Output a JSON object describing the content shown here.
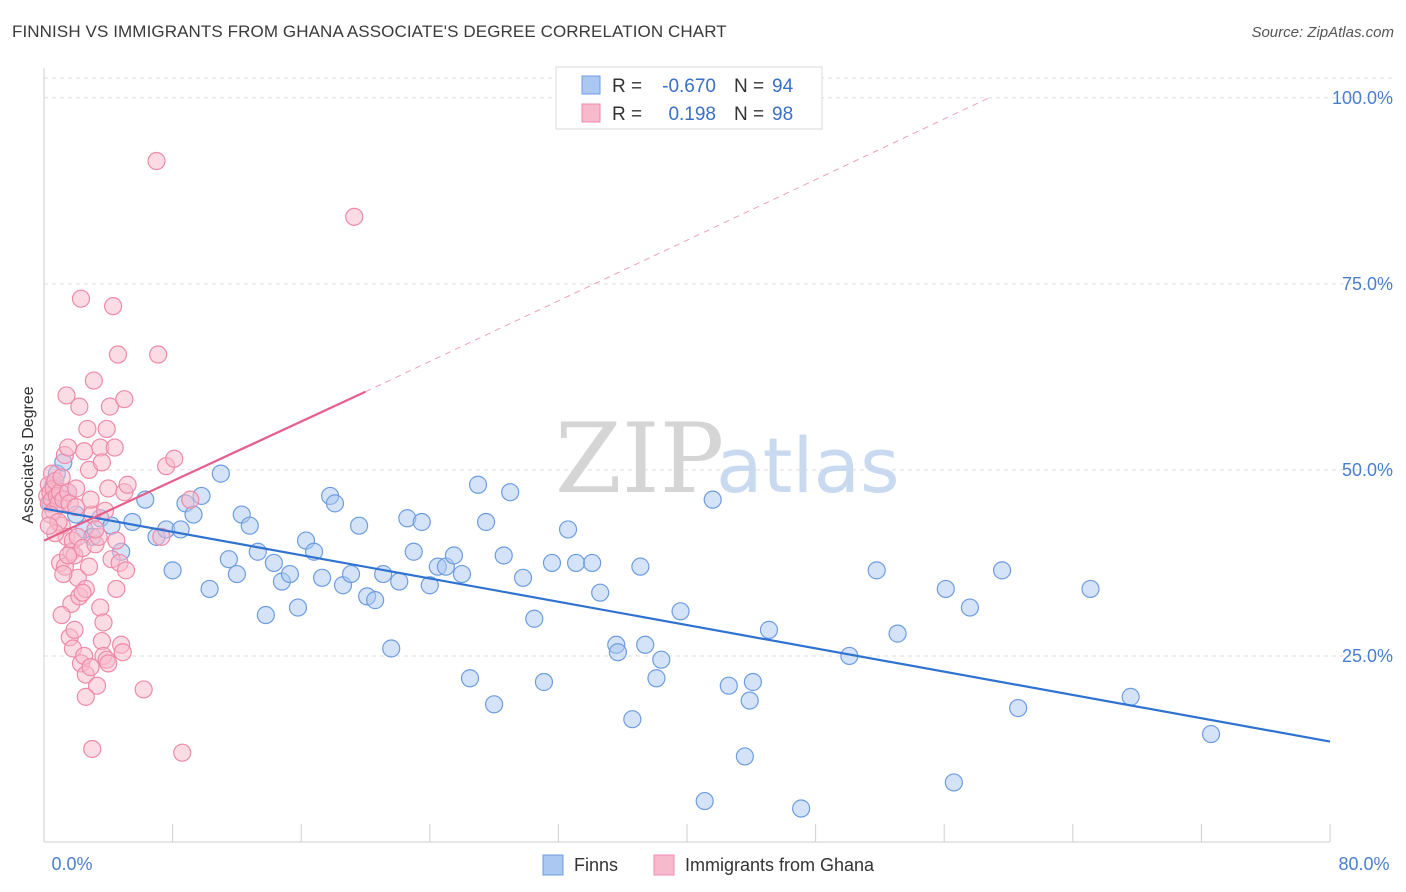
{
  "title": "FINNISH VS IMMIGRANTS FROM GHANA ASSOCIATE'S DEGREE CORRELATION CHART",
  "source": "Source: ZipAtlas.com",
  "watermark": {
    "zip": "ZIP",
    "atlas": "atlas"
  },
  "colors": {
    "finns_fill": "#aac8f2",
    "finns_stroke": "#6d9de0",
    "finns_line": "#2f72d0",
    "ghana_fill": "#f7b9cc",
    "ghana_stroke": "#ee8aa8",
    "ghana_line": "#e55f8a",
    "grid": "#dedede",
    "tick_text": "#4a7fd0"
  },
  "legend": {
    "rows": [
      {
        "r_label": "R =",
        "r_value": "-0.670",
        "n_label": "N =",
        "n_value": "94"
      },
      {
        "r_label": "R =",
        "r_value": "0.198",
        "n_label": "N =",
        "n_value": "98"
      }
    ]
  },
  "chart_data": {
    "type": "scatter",
    "xlabel": "",
    "ylabel": "Associate's Degree",
    "xlim": [
      0,
      80
    ],
    "ylim": [
      0,
      104
    ],
    "x_tick_labels": [
      "0.0%",
      "80.0%"
    ],
    "y_ticks": [
      25,
      50,
      75,
      100
    ],
    "y_tick_labels": [
      "25.0%",
      "50.0%",
      "75.0%",
      "100.0%"
    ],
    "grid": true,
    "legend_position": "top-center",
    "series": [
      {
        "name": "Finns",
        "r": -0.67,
        "n": 94,
        "trend": {
          "x": [
            0,
            80
          ],
          "y": [
            44.8,
            13.5
          ]
        },
        "points": [
          [
            0.4,
            45.5
          ],
          [
            0.6,
            48.0
          ],
          [
            0.8,
            49.5
          ],
          [
            1.2,
            51.0
          ],
          [
            1.5,
            47.0
          ],
          [
            2.0,
            44.0
          ],
          [
            2.5,
            42.0
          ],
          [
            3.0,
            41.0
          ],
          [
            3.5,
            43.5
          ],
          [
            4.2,
            42.5
          ],
          [
            4.8,
            39.0
          ],
          [
            5.5,
            43.0
          ],
          [
            6.3,
            46.0
          ],
          [
            7.0,
            41.0
          ],
          [
            7.6,
            42.0
          ],
          [
            8.0,
            36.5
          ],
          [
            8.5,
            42.0
          ],
          [
            8.8,
            45.5
          ],
          [
            9.3,
            44.0
          ],
          [
            9.8,
            46.5
          ],
          [
            10.3,
            34.0
          ],
          [
            11.0,
            49.5
          ],
          [
            11.5,
            38.0
          ],
          [
            12.0,
            36.0
          ],
          [
            12.3,
            44.0
          ],
          [
            12.8,
            42.5
          ],
          [
            13.3,
            39.0
          ],
          [
            13.8,
            30.5
          ],
          [
            14.3,
            37.5
          ],
          [
            14.8,
            35.0
          ],
          [
            15.3,
            36.0
          ],
          [
            15.8,
            31.5
          ],
          [
            16.3,
            40.5
          ],
          [
            16.8,
            39.0
          ],
          [
            17.3,
            35.5
          ],
          [
            17.8,
            46.5
          ],
          [
            18.1,
            45.5
          ],
          [
            18.6,
            34.5
          ],
          [
            19.1,
            36.0
          ],
          [
            19.6,
            42.5
          ],
          [
            20.1,
            33.0
          ],
          [
            20.6,
            32.5
          ],
          [
            21.1,
            36.0
          ],
          [
            21.6,
            26.0
          ],
          [
            22.1,
            35.0
          ],
          [
            22.6,
            43.5
          ],
          [
            23.0,
            39.0
          ],
          [
            23.5,
            43.0
          ],
          [
            24.0,
            34.5
          ],
          [
            24.5,
            37.0
          ],
          [
            25.0,
            37.0
          ],
          [
            25.5,
            38.5
          ],
          [
            26.0,
            36.0
          ],
          [
            26.5,
            22.0
          ],
          [
            27.0,
            48.0
          ],
          [
            27.5,
            43.0
          ],
          [
            28.0,
            18.5
          ],
          [
            28.6,
            38.5
          ],
          [
            29.0,
            47.0
          ],
          [
            29.8,
            35.5
          ],
          [
            30.5,
            30.0
          ],
          [
            31.1,
            21.5
          ],
          [
            31.6,
            37.5
          ],
          [
            32.6,
            42.0
          ],
          [
            33.1,
            37.5
          ],
          [
            34.1,
            37.5
          ],
          [
            34.6,
            33.5
          ],
          [
            35.6,
            26.5
          ],
          [
            35.7,
            25.5
          ],
          [
            36.6,
            16.5
          ],
          [
            37.1,
            37.0
          ],
          [
            37.4,
            26.5
          ],
          [
            38.1,
            22.0
          ],
          [
            38.4,
            24.5
          ],
          [
            39.6,
            31.0
          ],
          [
            41.1,
            5.5
          ],
          [
            41.6,
            46.0
          ],
          [
            42.6,
            21.0
          ],
          [
            43.6,
            11.5
          ],
          [
            43.9,
            19.0
          ],
          [
            44.1,
            21.5
          ],
          [
            45.1,
            28.5
          ],
          [
            50.1,
            25.0
          ],
          [
            51.8,
            36.5
          ],
          [
            53.1,
            28.0
          ],
          [
            56.1,
            34.0
          ],
          [
            56.6,
            8.0
          ],
          [
            57.6,
            31.5
          ],
          [
            59.6,
            36.5
          ],
          [
            60.6,
            18.0
          ],
          [
            65.1,
            34.0
          ],
          [
            67.6,
            19.5
          ],
          [
            72.6,
            14.5
          ],
          [
            47.1,
            4.5
          ]
        ]
      },
      {
        "name": "Immigrants from Ghana",
        "r": 0.198,
        "n": 98,
        "trend": {
          "x": [
            0,
            20
          ],
          "y": [
            40.5,
            60.5
          ]
        },
        "trend_dashed": {
          "x": [
            20,
            58.8
          ],
          "y": [
            60.5,
            100
          ]
        },
        "points": [
          [
            0.2,
            46.5
          ],
          [
            0.3,
            48.0
          ],
          [
            0.3,
            45.5
          ],
          [
            0.4,
            47.0
          ],
          [
            0.5,
            49.5
          ],
          [
            0.5,
            46.0
          ],
          [
            0.6,
            47.5
          ],
          [
            0.6,
            44.5
          ],
          [
            0.7,
            48.5
          ],
          [
            0.8,
            46.5
          ],
          [
            0.9,
            45.5
          ],
          [
            1.0,
            47.0
          ],
          [
            1.0,
            37.5
          ],
          [
            1.1,
            42.5
          ],
          [
            1.1,
            49.0
          ],
          [
            1.2,
            46.0
          ],
          [
            1.3,
            52.0
          ],
          [
            1.3,
            37.0
          ],
          [
            1.4,
            41.0
          ],
          [
            1.4,
            60.0
          ],
          [
            1.5,
            53.0
          ],
          [
            1.5,
            47.0
          ],
          [
            1.6,
            45.5
          ],
          [
            1.6,
            27.5
          ],
          [
            1.7,
            39.0
          ],
          [
            1.7,
            32.0
          ],
          [
            1.8,
            40.5
          ],
          [
            1.8,
            26.0
          ],
          [
            1.9,
            38.5
          ],
          [
            2.0,
            47.5
          ],
          [
            2.0,
            45.0
          ],
          [
            2.1,
            41.0
          ],
          [
            2.1,
            35.5
          ],
          [
            2.2,
            58.5
          ],
          [
            2.2,
            33.0
          ],
          [
            2.3,
            73.0
          ],
          [
            2.3,
            24.0
          ],
          [
            2.4,
            39.5
          ],
          [
            2.5,
            52.5
          ],
          [
            2.5,
            25.0
          ],
          [
            2.6,
            34.0
          ],
          [
            2.6,
            22.5
          ],
          [
            2.7,
            55.5
          ],
          [
            2.8,
            50.0
          ],
          [
            2.8,
            37.0
          ],
          [
            2.9,
            23.5
          ],
          [
            3.0,
            44.0
          ],
          [
            3.0,
            12.5
          ],
          [
            3.1,
            62.0
          ],
          [
            3.2,
            40.0
          ],
          [
            3.3,
            21.0
          ],
          [
            3.4,
            41.0
          ],
          [
            3.5,
            53.0
          ],
          [
            3.5,
            31.5
          ],
          [
            3.6,
            51.0
          ],
          [
            3.6,
            27.0
          ],
          [
            3.7,
            25.0
          ],
          [
            3.8,
            44.5
          ],
          [
            3.9,
            55.5
          ],
          [
            3.9,
            24.5
          ],
          [
            4.0,
            47.5
          ],
          [
            4.0,
            24.0
          ],
          [
            4.1,
            58.5
          ],
          [
            4.2,
            38.0
          ],
          [
            4.3,
            72.0
          ],
          [
            4.4,
            53.0
          ],
          [
            4.5,
            40.5
          ],
          [
            4.6,
            65.5
          ],
          [
            4.7,
            37.5
          ],
          [
            4.8,
            26.5
          ],
          [
            4.9,
            25.5
          ],
          [
            5.0,
            47.0
          ],
          [
            5.0,
            59.5
          ],
          [
            5.1,
            36.5
          ],
          [
            5.2,
            48.0
          ],
          [
            6.2,
            20.5
          ],
          [
            7.0,
            91.5
          ],
          [
            7.1,
            65.5
          ],
          [
            7.3,
            41.0
          ],
          [
            7.6,
            50.5
          ],
          [
            8.1,
            51.5
          ],
          [
            8.6,
            12.0
          ],
          [
            9.1,
            46.0
          ],
          [
            19.3,
            84.0
          ],
          [
            0.4,
            44.0
          ],
          [
            0.9,
            43.0
          ],
          [
            1.2,
            36.0
          ],
          [
            2.4,
            33.5
          ],
          [
            3.2,
            42.0
          ],
          [
            1.5,
            38.5
          ],
          [
            0.7,
            41.5
          ],
          [
            2.9,
            46.0
          ],
          [
            1.9,
            28.5
          ],
          [
            3.7,
            29.5
          ],
          [
            4.5,
            34.0
          ],
          [
            2.6,
            19.5
          ],
          [
            1.1,
            30.5
          ],
          [
            0.3,
            42.5
          ]
        ]
      }
    ]
  }
}
